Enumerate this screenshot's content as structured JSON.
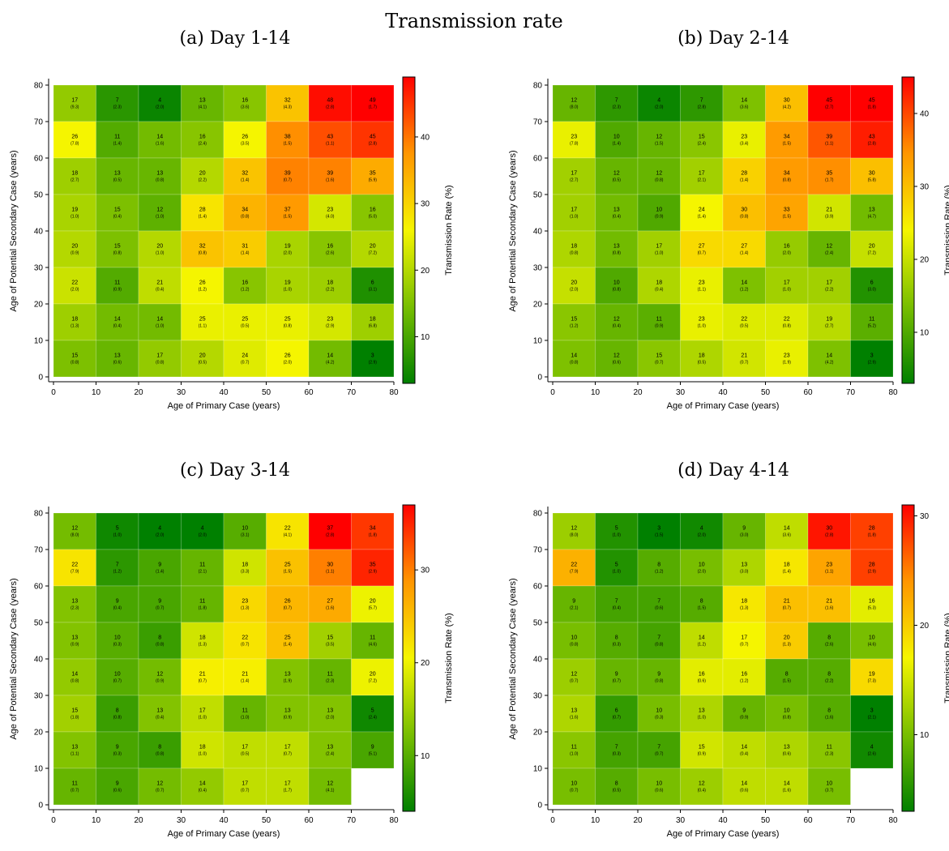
{
  "figure": {
    "title": "Transmission rate"
  },
  "chart_data": [
    {
      "type": "heatmap",
      "title": "(a) Day 1-14",
      "xlabel": "Age of Primary Case (years)",
      "ylabel": "Age of Potential Secondary Case (years)",
      "colorbar_label": "Transmission Rate (%)",
      "xlim": [
        0,
        80
      ],
      "ylim": [
        0,
        80
      ],
      "xticks": [
        0,
        10,
        20,
        30,
        40,
        50,
        60,
        70,
        80
      ],
      "yticks": [
        0,
        10,
        20,
        30,
        40,
        50,
        60,
        70,
        80
      ],
      "colorbar_ticks": [
        10,
        20,
        30,
        40
      ],
      "colorbar_range": [
        3,
        49
      ],
      "x_bins": [
        [
          0,
          10
        ],
        [
          10,
          20
        ],
        [
          20,
          30
        ],
        [
          30,
          40
        ],
        [
          40,
          50
        ],
        [
          50,
          60
        ],
        [
          60,
          70
        ],
        [
          70,
          80
        ]
      ],
      "y_bins": [
        [
          70,
          80
        ],
        [
          60,
          70
        ],
        [
          50,
          60
        ],
        [
          40,
          50
        ],
        [
          30,
          40
        ],
        [
          20,
          30
        ],
        [
          10,
          20
        ],
        [
          0,
          10
        ]
      ],
      "values": [
        [
          17,
          7,
          4,
          13,
          16,
          32,
          48,
          49
        ],
        [
          26,
          11,
          14,
          16,
          26,
          38,
          43,
          45
        ],
        [
          18,
          13,
          13,
          20,
          32,
          39,
          39,
          35
        ],
        [
          19,
          15,
          12,
          28,
          34,
          37,
          23,
          16
        ],
        [
          20,
          15,
          20,
          32,
          31,
          19,
          16,
          20
        ],
        [
          22,
          11,
          21,
          26,
          16,
          19,
          18,
          6
        ],
        [
          18,
          14,
          14,
          25,
          25,
          25,
          23,
          18
        ],
        [
          15,
          13,
          17,
          20,
          24,
          26,
          14,
          3
        ]
      ],
      "errors": [
        [
          "9.3",
          "2.3",
          "2.0",
          "4.1",
          "3.6",
          "4.3",
          "2.8",
          "1.7"
        ],
        [
          "7.8",
          "1.4",
          "1.6",
          "2.4",
          "3.5",
          "1.5",
          "1.1",
          "2.8"
        ],
        [
          "2.7",
          "0.5",
          "0.8",
          "2.2",
          "1.4",
          "0.7",
          "1.6",
          "5.9"
        ],
        [
          "1.0",
          "0.4",
          "1.0",
          "1.4",
          "0.8",
          "1.5",
          "4.0",
          "5.0"
        ],
        [
          "0.9",
          "0.8",
          "1.0",
          "0.8",
          "1.4",
          "2.0",
          "2.6",
          "7.2"
        ],
        [
          "2.0",
          "0.9",
          "0.4",
          "1.2",
          "1.2",
          "1.0",
          "2.2",
          "3.1"
        ],
        [
          "1.3",
          "0.4",
          "1.0",
          "1.1",
          "0.5",
          "0.8",
          "2.9",
          "6.8"
        ],
        [
          "0.8",
          "0.6",
          "0.8",
          "0.5",
          "0.7",
          "2.0",
          "4.2",
          "2.9"
        ]
      ]
    },
    {
      "type": "heatmap",
      "title": "(b) Day 2-14",
      "xlabel": "Age of Primary Case (years)",
      "ylabel": "Age of Potential Secondary Case (years)",
      "colorbar_label": "Transmission Rate (%)",
      "xlim": [
        0,
        80
      ],
      "ylim": [
        0,
        80
      ],
      "xticks": [
        0,
        10,
        20,
        30,
        40,
        50,
        60,
        70,
        80
      ],
      "yticks": [
        0,
        10,
        20,
        30,
        40,
        50,
        60,
        70,
        80
      ],
      "colorbar_ticks": [
        10,
        20,
        30,
        40
      ],
      "colorbar_range": [
        3,
        45
      ],
      "x_bins": [
        [
          0,
          10
        ],
        [
          10,
          20
        ],
        [
          20,
          30
        ],
        [
          30,
          40
        ],
        [
          40,
          50
        ],
        [
          50,
          60
        ],
        [
          60,
          70
        ],
        [
          70,
          80
        ]
      ],
      "y_bins": [
        [
          70,
          80
        ],
        [
          60,
          70
        ],
        [
          50,
          60
        ],
        [
          40,
          50
        ],
        [
          30,
          40
        ],
        [
          20,
          30
        ],
        [
          10,
          20
        ],
        [
          0,
          10
        ]
      ],
      "values": [
        [
          12,
          7,
          4,
          7,
          14,
          30,
          45,
          45
        ],
        [
          23,
          10,
          12,
          15,
          23,
          34,
          39,
          43
        ],
        [
          17,
          12,
          12,
          17,
          28,
          34,
          35,
          30
        ],
        [
          17,
          13,
          10,
          24,
          30,
          33,
          21,
          13
        ],
        [
          18,
          13,
          17,
          27,
          27,
          16,
          12,
          20
        ],
        [
          20,
          10,
          18,
          23,
          14,
          17,
          17,
          6
        ],
        [
          15,
          12,
          11,
          23,
          22,
          22,
          19,
          11
        ],
        [
          14,
          12,
          15,
          18,
          21,
          23,
          14,
          3
        ]
      ],
      "errors": [
        [
          "8.0",
          "2.3",
          "2.0",
          "2.8",
          "3.6",
          "4.2",
          "2.7",
          "1.8"
        ],
        [
          "7.8",
          "1.4",
          "1.5",
          "2.4",
          "3.4",
          "1.5",
          "1.1",
          "2.8"
        ],
        [
          "2.7",
          "0.5",
          "0.8",
          "2.1",
          "1.4",
          "0.8",
          "1.7",
          "5.8"
        ],
        [
          "1.0",
          "0.4",
          "0.9",
          "1.4",
          "0.8",
          "1.5",
          "3.9",
          "4.7"
        ],
        [
          "0.8",
          "0.8",
          "1.0",
          "0.7",
          "1.4",
          "2.0",
          "2.4",
          "7.2"
        ],
        [
          "2.0",
          "0.8",
          "0.4",
          "1.1",
          "1.2",
          "1.0",
          "2.2",
          "3.0"
        ],
        [
          "1.2",
          "0.4",
          "0.9",
          "1.0",
          "0.5",
          "0.8",
          "2.7",
          "5.2"
        ],
        [
          "0.8",
          "0.6",
          "0.7",
          "0.5",
          "0.7",
          "1.9",
          "4.2",
          "2.9"
        ]
      ]
    },
    {
      "type": "heatmap",
      "title": "(c) Day 3-14",
      "xlabel": "Age of Primary Case (years)",
      "ylabel": "Age of Potential Secondary Case (years)",
      "colorbar_label": "Transmission Rate (%)",
      "xlim": [
        0,
        80
      ],
      "ylim": [
        0,
        80
      ],
      "xticks": [
        0,
        10,
        20,
        30,
        40,
        50,
        60,
        70,
        80
      ],
      "yticks": [
        0,
        10,
        20,
        30,
        40,
        50,
        60,
        70,
        80
      ],
      "colorbar_ticks": [
        10,
        20,
        30
      ],
      "colorbar_range": [
        4,
        37
      ],
      "x_bins": [
        [
          0,
          10
        ],
        [
          10,
          20
        ],
        [
          20,
          30
        ],
        [
          30,
          40
        ],
        [
          40,
          50
        ],
        [
          50,
          60
        ],
        [
          60,
          70
        ],
        [
          70,
          80
        ]
      ],
      "y_bins": [
        [
          70,
          80
        ],
        [
          60,
          70
        ],
        [
          50,
          60
        ],
        [
          40,
          50
        ],
        [
          30,
          40
        ],
        [
          20,
          30
        ],
        [
          10,
          20
        ],
        [
          0,
          10
        ]
      ],
      "values": [
        [
          12,
          5,
          4,
          4,
          10,
          22,
          37,
          34
        ],
        [
          22,
          7,
          9,
          11,
          18,
          25,
          30,
          35
        ],
        [
          13,
          9,
          9,
          11,
          23,
          26,
          27,
          20
        ],
        [
          13,
          10,
          8,
          18,
          22,
          25,
          15,
          11
        ],
        [
          14,
          10,
          12,
          21,
          21,
          13,
          11,
          20
        ],
        [
          15,
          8,
          13,
          17,
          11,
          13,
          13,
          5
        ],
        [
          13,
          9,
          8,
          18,
          17,
          17,
          13,
          9
        ],
        [
          11,
          9,
          12,
          14,
          17,
          17,
          12,
          null
        ]
      ],
      "errors": [
        [
          "8.0",
          "1.0",
          "2.0",
          "2.0",
          "3.1",
          "4.1",
          "2.8",
          "1.8"
        ],
        [
          "7.9",
          "1.2",
          "1.4",
          "2.1",
          "3.3",
          "1.5",
          "1.1",
          "2.9"
        ],
        [
          "2.3",
          "0.4",
          "0.7",
          "1.8",
          "1.3",
          "0.7",
          "1.6",
          "5.7"
        ],
        [
          "0.9",
          "0.3",
          "0.8",
          "1.3",
          "0.7",
          "1.4",
          "3.5",
          "4.6"
        ],
        [
          "0.8",
          "0.7",
          "0.9",
          "0.7",
          "1.4",
          "1.9",
          "2.3",
          "7.2"
        ],
        [
          "1.8",
          "0.8",
          "0.4",
          "1.0",
          "1.0",
          "0.9",
          "2.0",
          "2.4"
        ],
        [
          "1.1",
          "0.3",
          "0.8",
          "1.0",
          "0.5",
          "0.7",
          "2.4",
          "5.1"
        ],
        [
          "0.7",
          "0.6",
          "0.7",
          "0.4",
          "0.7",
          "1.7",
          "4.1",
          null
        ]
      ]
    },
    {
      "type": "heatmap",
      "title": "(d) Day 4-14",
      "xlabel": "Age of Primary Case (years)",
      "ylabel": "Age of Potential Secondary Case (years)",
      "colorbar_label": "Transmission Rate (%)",
      "xlim": [
        0,
        80
      ],
      "ylim": [
        0,
        80
      ],
      "xticks": [
        0,
        10,
        20,
        30,
        40,
        50,
        60,
        70,
        80
      ],
      "yticks": [
        0,
        10,
        20,
        30,
        40,
        50,
        60,
        70,
        80
      ],
      "colorbar_ticks": [
        10,
        20,
        30
      ],
      "colorbar_range": [
        3,
        31
      ],
      "x_bins": [
        [
          0,
          10
        ],
        [
          10,
          20
        ],
        [
          20,
          30
        ],
        [
          30,
          40
        ],
        [
          40,
          50
        ],
        [
          50,
          60
        ],
        [
          60,
          70
        ],
        [
          70,
          80
        ]
      ],
      "y_bins": [
        [
          70,
          80
        ],
        [
          60,
          70
        ],
        [
          50,
          60
        ],
        [
          40,
          50
        ],
        [
          30,
          40
        ],
        [
          20,
          30
        ],
        [
          10,
          20
        ],
        [
          0,
          10
        ]
      ],
      "values": [
        [
          12,
          5,
          3,
          4,
          9,
          14,
          30,
          28
        ],
        [
          22,
          5,
          8,
          10,
          13,
          18,
          23,
          28
        ],
        [
          9,
          7,
          7,
          8,
          18,
          21,
          21,
          16
        ],
        [
          10,
          8,
          7,
          14,
          17,
          20,
          8,
          10
        ],
        [
          12,
          9,
          9,
          16,
          16,
          8,
          8,
          19
        ],
        [
          13,
          6,
          10,
          13,
          9,
          10,
          8,
          3
        ],
        [
          11,
          7,
          7,
          15,
          14,
          13,
          11,
          4
        ],
        [
          10,
          8,
          10,
          12,
          14,
          14,
          10,
          null
        ]
      ],
      "errors": [
        [
          "8.0",
          "1.0",
          "1.5",
          "2.0",
          "3.0",
          "3.6",
          "2.8",
          "1.8"
        ],
        [
          "7.9",
          "1.0",
          "1.2",
          "2.0",
          "3.0",
          "1.4",
          "1.1",
          "2.9"
        ],
        [
          "2.1",
          "0.4",
          "0.6",
          "1.5",
          "1.3",
          "0.7",
          "1.6",
          "5.3"
        ],
        [
          "0.8",
          "0.3",
          "0.8",
          "1.2",
          "0.7",
          "1.3",
          "2.6",
          "4.6"
        ],
        [
          "0.7",
          "0.7",
          "0.8",
          "0.6",
          "1.2",
          "1.5",
          "2.2",
          "7.3"
        ],
        [
          "1.6",
          "0.7",
          "0.3",
          "1.0",
          "0.9",
          "0.8",
          "1.6",
          "2.1"
        ],
        [
          "1.0",
          "0.3",
          "0.7",
          "0.9",
          "0.4",
          "0.6",
          "2.3",
          "2.6"
        ],
        [
          "0.7",
          "0.5",
          "0.6",
          "0.4",
          "0.6",
          "1.6",
          "3.7",
          null
        ]
      ]
    }
  ]
}
